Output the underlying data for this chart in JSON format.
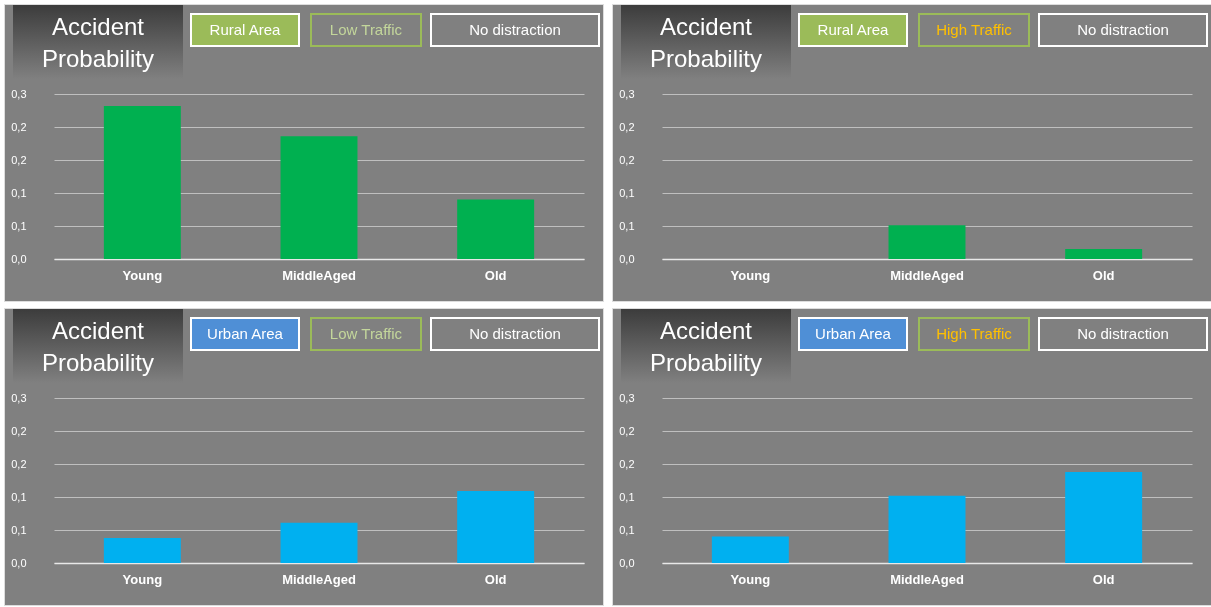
{
  "chart_data": [
    {
      "type": "bar",
      "title": "Accident Probability",
      "annotations": [
        "Rural Area",
        "Low Traffic",
        "No distraction"
      ],
      "categories": [
        "Young",
        "MiddleAged",
        "Old"
      ],
      "values": [
        0.232,
        0.186,
        0.09
      ],
      "color": "#00b050",
      "ylim": [
        0,
        0.25
      ],
      "yticks": [
        {
          "value": 0,
          "label": "0,0"
        },
        {
          "value": 0.05,
          "label": "0,1"
        },
        {
          "value": 0.1,
          "label": "0,1"
        },
        {
          "value": 0.15,
          "label": "0,2"
        },
        {
          "value": 0.2,
          "label": "0,2"
        },
        {
          "value": 0.25,
          "label": "0,3"
        }
      ],
      "grid": "y"
    },
    {
      "type": "bar",
      "title": "Accident Probability",
      "annotations": [
        "Rural Area",
        "High Traffic",
        "No distraction"
      ],
      "categories": [
        "Young",
        "MiddleAged",
        "Old"
      ],
      "values": [
        0,
        0.051,
        0.015
      ],
      "color": "#00b050",
      "ylim": [
        0,
        0.25
      ],
      "yticks": [
        {
          "value": 0,
          "label": "0,0"
        },
        {
          "value": 0.05,
          "label": "0,1"
        },
        {
          "value": 0.1,
          "label": "0,1"
        },
        {
          "value": 0.15,
          "label": "0,2"
        },
        {
          "value": 0.2,
          "label": "0,2"
        },
        {
          "value": 0.25,
          "label": "0,3"
        }
      ],
      "grid": "y"
    },
    {
      "type": "bar",
      "title": "Accident Probability",
      "annotations": [
        "Urban Area",
        "Low Traffic",
        "No distraction"
      ],
      "categories": [
        "Young",
        "MiddleAged",
        "Old"
      ],
      "values": [
        0.038,
        0.061,
        0.109
      ],
      "color": "#00b0f0",
      "ylim": [
        0,
        0.25
      ],
      "yticks": [
        {
          "value": 0,
          "label": "0,0"
        },
        {
          "value": 0.05,
          "label": "0,1"
        },
        {
          "value": 0.1,
          "label": "0,1"
        },
        {
          "value": 0.15,
          "label": "0,2"
        },
        {
          "value": 0.2,
          "label": "0,2"
        },
        {
          "value": 0.25,
          "label": "0,3"
        }
      ],
      "grid": "y"
    },
    {
      "type": "bar",
      "title": "Accident Probability",
      "annotations": [
        "Urban Area",
        "High Traffic",
        "No distraction"
      ],
      "categories": [
        "Young",
        "MiddleAged",
        "Old"
      ],
      "values": [
        0.04,
        0.102,
        0.138
      ],
      "color": "#00b0f0",
      "ylim": [
        0,
        0.25
      ],
      "yticks": [
        {
          "value": 0,
          "label": "0,0"
        },
        {
          "value": 0.05,
          "label": "0,1"
        },
        {
          "value": 0.1,
          "label": "0,1"
        },
        {
          "value": 0.15,
          "label": "0,2"
        },
        {
          "value": 0.2,
          "label": "0,2"
        },
        {
          "value": 0.25,
          "label": "0,3"
        }
      ],
      "grid": "y"
    }
  ]
}
